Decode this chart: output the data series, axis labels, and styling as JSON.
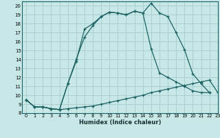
{
  "xlabel": "Humidex (Indice chaleur)",
  "background_color": "#c8e8e8",
  "grid_color": "#a8d0d0",
  "line_color": "#1a6060",
  "xlim": [
    -0.5,
    23
  ],
  "ylim": [
    8,
    20.5
  ],
  "xticks": [
    0,
    1,
    2,
    3,
    4,
    5,
    6,
    7,
    8,
    9,
    10,
    11,
    12,
    13,
    14,
    15,
    16,
    17,
    18,
    19,
    20,
    21,
    22,
    23
  ],
  "yticks": [
    8,
    9,
    10,
    11,
    12,
    13,
    14,
    15,
    16,
    17,
    18,
    19,
    20
  ],
  "series": [
    {
      "x": [
        0,
        1,
        2,
        3,
        4,
        5,
        6,
        7,
        8,
        9,
        10,
        11,
        12,
        13,
        14,
        15,
        16,
        17,
        18,
        19,
        20,
        21,
        22,
        23
      ],
      "y": [
        9.5,
        8.7,
        8.7,
        8.5,
        8.4,
        8.5,
        8.6,
        8.7,
        8.8,
        9.0,
        9.2,
        9.4,
        9.6,
        9.8,
        10.0,
        10.3,
        10.5,
        10.7,
        10.9,
        11.1,
        11.3,
        11.5,
        11.7,
        10.3
      ]
    },
    {
      "x": [
        0,
        1,
        2,
        3,
        4,
        5,
        6,
        7,
        8,
        9,
        10,
        11,
        12,
        13,
        14,
        15,
        16,
        17,
        18,
        19,
        20,
        21,
        22
      ],
      "y": [
        9.5,
        8.7,
        8.7,
        8.5,
        8.4,
        11.3,
        14.0,
        16.5,
        17.8,
        18.8,
        19.3,
        19.2,
        19.0,
        19.4,
        19.2,
        15.2,
        12.5,
        12.0,
        11.5,
        11.0,
        10.5,
        10.3,
        10.3
      ]
    },
    {
      "x": [
        0,
        1,
        2,
        3,
        4,
        5,
        6,
        7,
        8,
        9,
        10,
        11,
        12,
        13,
        14,
        15,
        16,
        17,
        18,
        19,
        20,
        21,
        22
      ],
      "y": [
        9.5,
        8.7,
        8.7,
        8.5,
        8.4,
        11.3,
        13.8,
        17.4,
        18.0,
        18.8,
        19.3,
        19.2,
        19.0,
        19.4,
        19.2,
        20.3,
        19.2,
        18.8,
        17.0,
        15.1,
        12.4,
        11.3,
        10.3
      ]
    }
  ]
}
